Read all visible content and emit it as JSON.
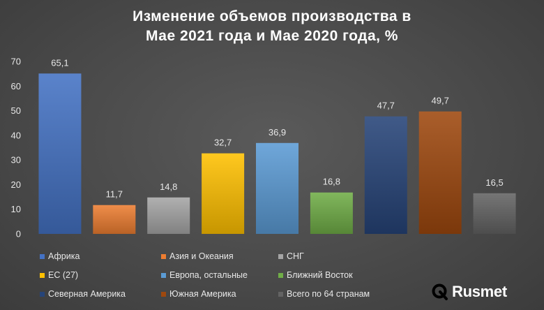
{
  "chart_data": {
    "type": "bar",
    "title_line1": "Изменение объемов производства в",
    "title_line2": "Мае 2021 года и Мае 2020 года, %",
    "ylim": [
      0,
      70
    ],
    "yticks": [
      "0",
      "10",
      "20",
      "30",
      "40",
      "50",
      "60",
      "70"
    ],
    "grid": false,
    "legend_position": "bottom",
    "categories": [
      "Африка",
      "Азия и Океания",
      "СНГ",
      "ЕС (27)",
      "Европа, остальные",
      "Ближний Восток",
      "Северная Америка",
      "Южная Америка",
      "Всего по 64 странам"
    ],
    "values": [
      65.1,
      11.7,
      14.8,
      32.7,
      36.9,
      16.8,
      47.7,
      49.7,
      16.5
    ],
    "value_labels": [
      "65,1",
      "11,7",
      "14,8",
      "32,7",
      "36,9",
      "16,8",
      "47,7",
      "49,7",
      "16,5"
    ],
    "colors": [
      "#4472c4",
      "#ed7d31",
      "#a5a5a5",
      "#ffc000",
      "#5b9bd5",
      "#70ad47",
      "#264478",
      "#9e480e",
      "#636363"
    ]
  },
  "brand": {
    "name": "Rusmet",
    "icon": "rusmet-logo-icon"
  }
}
